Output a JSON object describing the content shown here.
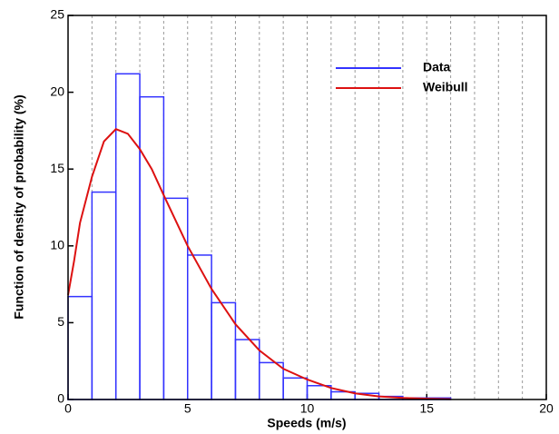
{
  "chart_data": {
    "type": "histogram",
    "xlabel": "Speeds (m/s)",
    "ylabel": "Function of density of probability (%)",
    "xlim": [
      0,
      20
    ],
    "ylim": [
      0,
      25
    ],
    "xticks": [
      0,
      5,
      10,
      15,
      20
    ],
    "yticks": [
      0,
      5,
      10,
      15,
      20,
      25
    ],
    "grid_x": [
      1,
      2,
      3,
      4,
      5,
      6,
      7,
      8,
      9,
      10,
      11,
      12,
      13,
      14,
      15,
      16,
      17,
      18,
      19
    ],
    "legend": "upper right",
    "bins": [
      0,
      1,
      2,
      3,
      4,
      5,
      6,
      7,
      8,
      9,
      10,
      11,
      12,
      13,
      14,
      15,
      16
    ],
    "series": [
      {
        "name": "Data",
        "type": "histogram",
        "color": "#3333ff",
        "values": [
          6.7,
          13.5,
          21.2,
          19.7,
          13.1,
          9.4,
          6.3,
          3.9,
          2.4,
          1.4,
          0.9,
          0.5,
          0.4,
          0.2,
          0.1,
          0.1
        ]
      },
      {
        "name": "Weibull",
        "type": "line",
        "color": "#dd1111",
        "x": [
          0,
          0.25,
          0.5,
          1,
          1.5,
          2,
          2.5,
          3,
          3.5,
          4,
          5,
          6,
          7,
          8,
          9,
          10,
          11,
          12,
          13,
          14,
          15,
          16
        ],
        "values": [
          6.8,
          9,
          11.5,
          14.5,
          16.8,
          17.6,
          17.3,
          16.3,
          15,
          13.3,
          10,
          7.2,
          4.9,
          3.2,
          2,
          1.3,
          0.75,
          0.4,
          0.2,
          0.1,
          0.05,
          0.02
        ]
      }
    ]
  }
}
